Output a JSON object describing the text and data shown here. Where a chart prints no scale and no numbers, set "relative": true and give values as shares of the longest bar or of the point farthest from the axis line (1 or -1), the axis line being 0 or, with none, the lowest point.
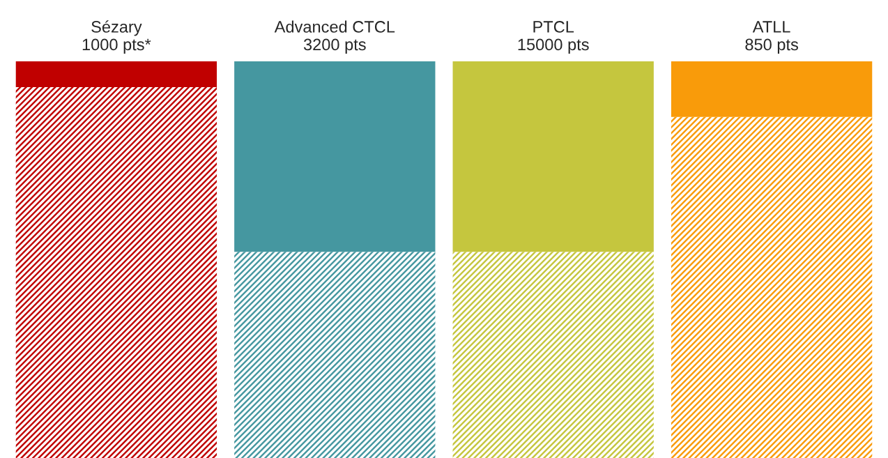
{
  "chart_data": {
    "type": "bar",
    "stacked": true,
    "relative": true,
    "categories": [
      "Sézary\n1000 pts*",
      "Advanced CTCL\n3200 pts",
      "PTCL\n15000 pts",
      "ATLL\n850 pts"
    ],
    "series": [
      {
        "colors": [
          "#c00000",
          "#4597a0",
          "#c5c63e",
          "#f99b0a"
        ],
        "values": [
          0.935,
          0.52,
          0.52,
          0.86
        ]
      },
      {
        "colors": [
          "#c00000",
          "#4597a0",
          "#c5c63e",
          "#f99b0a"
        ],
        "values": [
          0.065,
          0.48,
          0.48,
          0.14
        ]
      }
    ],
    "grid": false,
    "legend": false
  }
}
